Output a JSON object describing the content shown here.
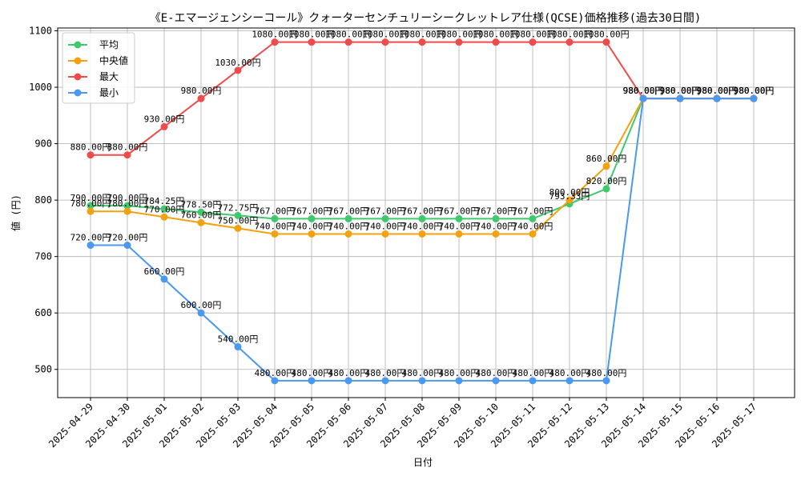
{
  "chart_data": {
    "type": "line",
    "title": "《E-エマージェンシーコール》クォーターセンチュリーシークレットレア仕様(QCSE)価格推移(過去30日間)",
    "xlabel": "日付",
    "ylabel": "値 (円)",
    "ylim": [
      450,
      1105
    ],
    "yticks": [
      500,
      600,
      700,
      800,
      900,
      1000,
      1100
    ],
    "grid": true,
    "legend_position": "top-left",
    "value_suffix": "円",
    "categories": [
      "2025-04-29",
      "2025-04-30",
      "2025-05-01",
      "2025-05-02",
      "2025-05-03",
      "2025-05-04",
      "2025-05-05",
      "2025-05-06",
      "2025-05-07",
      "2025-05-08",
      "2025-05-09",
      "2025-05-10",
      "2025-05-11",
      "2025-05-12",
      "2025-05-13",
      "2025-05-14",
      "2025-05-15",
      "2025-05-16",
      "2025-05-17"
    ],
    "series": [
      {
        "name": "平均",
        "color": "#3ec96b",
        "values": [
          790,
          790,
          784.25,
          778.5,
          772.75,
          767,
          767,
          767,
          767,
          767,
          767,
          767,
          767,
          793.33,
          820,
          980,
          980,
          980,
          980
        ]
      },
      {
        "name": "中央値",
        "color": "#f2a10f",
        "values": [
          780,
          780,
          770,
          760,
          750,
          740,
          740,
          740,
          740,
          740,
          740,
          740,
          740,
          800,
          860,
          980,
          980,
          980,
          980
        ]
      },
      {
        "name": "最大",
        "color": "#ef4b4b",
        "values": [
          880,
          880,
          930,
          980,
          1030,
          1080,
          1080,
          1080,
          1080,
          1080,
          1080,
          1080,
          1080,
          1080,
          1080,
          980,
          980,
          980,
          980
        ]
      },
      {
        "name": "最小",
        "color": "#4a98f0",
        "values": [
          720,
          720,
          660,
          600,
          540,
          480,
          480,
          480,
          480,
          480,
          480,
          480,
          480,
          480,
          480,
          980,
          980,
          980,
          980
        ]
      }
    ]
  }
}
